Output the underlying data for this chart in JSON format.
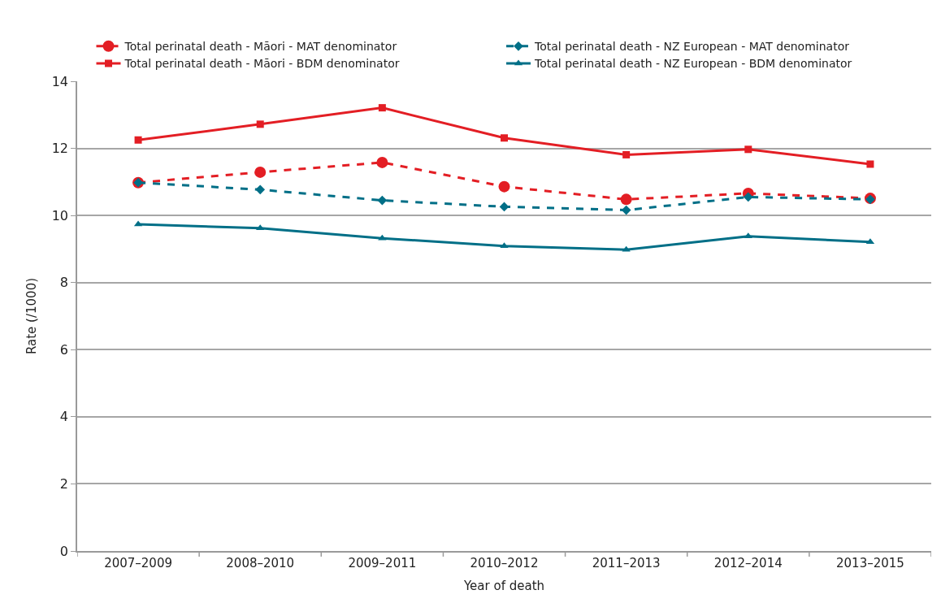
{
  "chart_data": {
    "type": "line",
    "xlabel": "Year of death",
    "ylabel": "Rate (/1000)",
    "categories": [
      "2007–2009",
      "2008–2010",
      "2009–2011",
      "2010–2012",
      "2011–2013",
      "2012–2014",
      "2013–2015"
    ],
    "series": [
      {
        "name": "Total perinatal death - Māori - MAT denominator",
        "color": "#e31e24",
        "marker": "circle",
        "line_style": "dashed",
        "values": [
          10.98,
          11.29,
          11.58,
          10.86,
          10.48,
          10.66,
          10.51
        ]
      },
      {
        "name": "Total perinatal death - NZ European - MAT denominator",
        "color": "#006f87",
        "marker": "diamond",
        "line_style": "dashed",
        "values": [
          10.98,
          10.77,
          10.45,
          10.26,
          10.16,
          10.55,
          10.48
        ]
      },
      {
        "name": "Total perinatal death - Māori - BDM denominator",
        "color": "#e31e24",
        "marker": "square",
        "line_style": "solid",
        "values": [
          12.25,
          12.72,
          13.21,
          12.31,
          11.81,
          11.97,
          11.53
        ]
      },
      {
        "name": "Total perinatal death - NZ European - BDM denominator",
        "color": "#006f87",
        "marker": "triangle",
        "line_style": "solid",
        "values": [
          9.74,
          9.62,
          9.32,
          9.09,
          8.98,
          9.38,
          9.21
        ]
      }
    ],
    "ylim": [
      0,
      14
    ],
    "yticks": [
      0,
      2,
      4,
      6,
      8,
      10,
      12,
      14
    ],
    "grid": "y",
    "legend": "top"
  }
}
